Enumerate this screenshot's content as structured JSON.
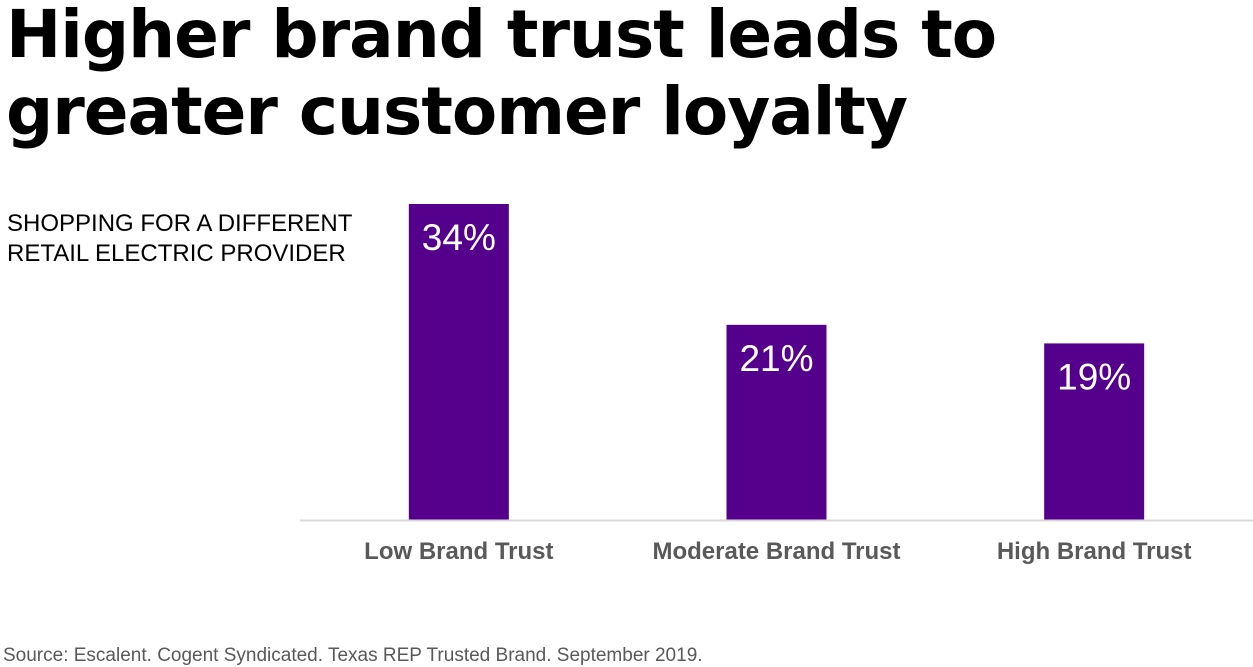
{
  "title": "Higher brand trust leads to greater customer loyalty",
  "source": "Source: Escalent. Cogent Syndicated. Texas REP Trusted Brand. September 2019.",
  "colors": {
    "bar": "#55008C",
    "value_label": "#FFFFFF",
    "category_label": "#595959",
    "axis": "#D9D9D9"
  },
  "chart_data": {
    "type": "bar",
    "title": "Higher brand trust leads to greater customer loyalty",
    "ylabel": "SHOPPING FOR A DIFFERENT RETAIL ELECTRIC PROVIDER",
    "xlabel": "",
    "categories": [
      "Low Brand Trust",
      "Moderate Brand Trust",
      "High Brand Trust"
    ],
    "values": [
      34,
      21,
      19
    ],
    "value_labels": [
      "34%",
      "21%",
      "19%"
    ],
    "unit": "%",
    "ylim": [
      0,
      34
    ],
    "grid": false,
    "legend": "none"
  }
}
